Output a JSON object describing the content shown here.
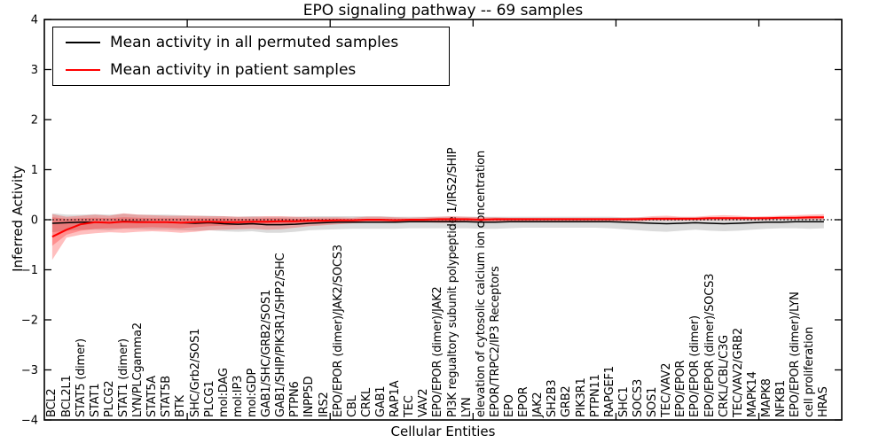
{
  "figure": {
    "title": "EPO signaling pathway -- 69 samples",
    "xlabel": "Cellular Entities",
    "ylabel": "Inferred Activity",
    "legend": [
      {
        "label": "Mean activity in all permuted samples",
        "color": "#000000"
      },
      {
        "label": "Mean activity in patient samples",
        "color": "#ff0000"
      }
    ]
  },
  "chart_data": {
    "type": "line",
    "title": "EPO signaling pathway -- 69 samples",
    "xlabel": "Cellular Entities",
    "ylabel": "Inferred Activity",
    "ylim": [
      -4,
      4
    ],
    "ytick_values": [
      4,
      3,
      2,
      1,
      0,
      -1,
      -2,
      -3,
      -4
    ],
    "ytick_labels": [
      "4",
      "3",
      "2",
      "1",
      "0",
      "−1",
      "−2",
      "−3",
      "−4"
    ],
    "xtick_values": [
      10,
      20,
      30,
      40,
      50
    ],
    "grid": false,
    "legend_position": "upper left",
    "zero_line": {
      "y": 0,
      "style": "dotted",
      "color": "#000000"
    },
    "categories": [
      "BCL2",
      "BCL2L1",
      "STAT5 (dimer)",
      "STAT1",
      "PLCG2",
      "STAT1 (dimer)",
      "LYN/PLCgamma2",
      "STAT5A",
      "STAT5B",
      "BTK",
      "SHC/Grb2/SOS1",
      "PLCG1",
      "mol:DAG",
      "mol:IP3",
      "mol:GDP",
      "GAB1/SHC/GRB2/SOS1",
      "GAB1/SHIP/PIK3R1/SHP2/SHC",
      "PTPN6",
      "INPP5D",
      "IRS2",
      "EPO/EPOR (dimer)/JAK2/SOCS3",
      "CBL",
      "CRKL",
      "GAB1",
      "RAP1A",
      "TEC",
      "VAV2",
      "EPO/EPOR (dimer)/JAK2",
      "PI3K regualtory subunit polypeptide 1/IRS2/SHIP",
      "LYN",
      "elevation of cytosolic calcium ion concentration",
      "EPOR/TRPC2/IP3 Receptors",
      "EPO",
      "EPOR",
      "JAK2",
      "SH2B3",
      "GRB2",
      "PIK3R1",
      "PTPN11",
      "RAPGEF1",
      "SHC1",
      "SOCS3",
      "SOS1",
      "TEC/VAV2",
      "EPO/EPOR",
      "EPO/EPOR (dimer)",
      "EPO/EPOR (dimer)/SOCS3",
      "CRKL/CBL/C3G",
      "TEC/VAV2/GRB2",
      "MAPK14",
      "MAPK8",
      "NFKB1",
      "EPO/EPOR (dimer)/LYN",
      "cell proliferation",
      "HRAS"
    ],
    "series": [
      {
        "name": "Mean activity in all permuted samples",
        "color": "#000000",
        "line_width": 1.5,
        "values": [
          -0.07,
          -0.06,
          -0.05,
          -0.05,
          -0.06,
          -0.03,
          -0.04,
          -0.05,
          -0.05,
          -0.06,
          -0.07,
          -0.06,
          -0.08,
          -0.09,
          -0.08,
          -0.1,
          -0.1,
          -0.09,
          -0.07,
          -0.06,
          -0.05,
          -0.05,
          -0.05,
          -0.05,
          -0.05,
          -0.04,
          -0.04,
          -0.04,
          -0.04,
          -0.04,
          -0.05,
          -0.05,
          -0.04,
          -0.04,
          -0.04,
          -0.04,
          -0.04,
          -0.04,
          -0.04,
          -0.04,
          -0.05,
          -0.06,
          -0.07,
          -0.08,
          -0.07,
          -0.06,
          -0.07,
          -0.08,
          -0.07,
          -0.06,
          -0.05,
          -0.05,
          -0.04,
          -0.04,
          -0.04
        ],
        "band": {
          "color": "rgba(0,0,0,0.14)",
          "hi": [
            0.13,
            0.1,
            0.1,
            0.11,
            0.1,
            0.12,
            0.1,
            0.1,
            0.1,
            0.09,
            0.08,
            0.08,
            0.07,
            0.06,
            0.07,
            0.06,
            0.06,
            0.06,
            0.07,
            0.07,
            0.07,
            0.07,
            0.07,
            0.07,
            0.06,
            0.06,
            0.06,
            0.06,
            0.06,
            0.06,
            0.06,
            0.06,
            0.06,
            0.06,
            0.06,
            0.06,
            0.06,
            0.06,
            0.06,
            0.06,
            0.05,
            0.05,
            0.05,
            0.05,
            0.05,
            0.05,
            0.05,
            0.05,
            0.05,
            0.05,
            0.05,
            0.05,
            0.05,
            0.05,
            0.05
          ],
          "lo": [
            -0.25,
            -0.22,
            -0.2,
            -0.2,
            -0.21,
            -0.18,
            -0.19,
            -0.2,
            -0.2,
            -0.21,
            -0.22,
            -0.21,
            -0.23,
            -0.24,
            -0.23,
            -0.26,
            -0.26,
            -0.24,
            -0.21,
            -0.2,
            -0.19,
            -0.18,
            -0.18,
            -0.18,
            -0.18,
            -0.17,
            -0.17,
            -0.17,
            -0.17,
            -0.17,
            -0.18,
            -0.18,
            -0.17,
            -0.16,
            -0.16,
            -0.16,
            -0.16,
            -0.16,
            -0.16,
            -0.17,
            -0.19,
            -0.21,
            -0.23,
            -0.24,
            -0.22,
            -0.2,
            -0.22,
            -0.23,
            -0.22,
            -0.2,
            -0.18,
            -0.17,
            -0.17,
            -0.18,
            -0.17
          ]
        }
      },
      {
        "name": "Mean activity in patient samples",
        "color": "#ff0000",
        "line_width": 2,
        "values": [
          -0.34,
          -0.2,
          -0.09,
          -0.05,
          -0.06,
          -0.04,
          -0.05,
          -0.05,
          -0.05,
          -0.06,
          -0.05,
          -0.04,
          -0.05,
          -0.05,
          -0.04,
          -0.04,
          -0.03,
          -0.03,
          -0.02,
          -0.02,
          -0.01,
          -0.01,
          0.0,
          0.0,
          -0.01,
          0.0,
          0.0,
          0.01,
          0.01,
          0.01,
          0.0,
          0.01,
          0.01,
          0.01,
          0.01,
          0.01,
          0.01,
          0.01,
          0.01,
          0.01,
          0.01,
          0.01,
          0.02,
          0.02,
          0.02,
          0.02,
          0.03,
          0.03,
          0.03,
          0.03,
          0.03,
          0.04,
          0.04,
          0.05,
          0.05
        ],
        "band": {
          "color": "rgba(255,0,0,0.25)",
          "hi": [
            0.11,
            0.06,
            0.08,
            0.1,
            0.08,
            0.13,
            0.1,
            0.09,
            0.08,
            0.08,
            0.08,
            0.07,
            0.07,
            0.06,
            0.06,
            0.07,
            0.07,
            0.06,
            0.05,
            0.05,
            0.05,
            0.04,
            0.06,
            0.06,
            0.05,
            0.04,
            0.05,
            0.06,
            0.07,
            0.06,
            0.05,
            0.05,
            0.04,
            0.04,
            0.04,
            0.04,
            0.04,
            0.04,
            0.04,
            0.04,
            0.04,
            0.05,
            0.07,
            0.08,
            0.06,
            0.06,
            0.08,
            0.09,
            0.08,
            0.06,
            0.07,
            0.08,
            0.09,
            0.1,
            0.11
          ],
          "lo": [
            -0.8,
            -0.36,
            -0.3,
            -0.27,
            -0.25,
            -0.26,
            -0.24,
            -0.23,
            -0.24,
            -0.26,
            -0.24,
            -0.21,
            -0.2,
            -0.19,
            -0.18,
            -0.2,
            -0.19,
            -0.16,
            -0.13,
            -0.11,
            -0.09,
            -0.07,
            -0.06,
            -0.06,
            -0.06,
            -0.05,
            -0.05,
            -0.06,
            -0.06,
            -0.05,
            -0.05,
            -0.05,
            -0.04,
            -0.04,
            -0.03,
            -0.03,
            -0.03,
            -0.03,
            -0.03,
            -0.03,
            -0.03,
            -0.03,
            -0.02,
            -0.02,
            -0.02,
            -0.02,
            -0.01,
            -0.01,
            -0.01,
            -0.01,
            -0.01,
            0.0,
            0.0,
            0.0,
            0.0
          ]
        },
        "band_inner": {
          "color": "rgba(255,0,0,0.25)",
          "hi": [
            0.05,
            0.02,
            0.03,
            0.04,
            0.03,
            0.05,
            0.04,
            0.03,
            0.03,
            0.03,
            0.03,
            0.03,
            0.03,
            0.02,
            0.02,
            0.03,
            0.03,
            0.02,
            0.02,
            0.02,
            0.02,
            0.01,
            0.02,
            0.02,
            0.02,
            0.01,
            0.02,
            0.02,
            0.03,
            0.02,
            0.02,
            0.02,
            0.01,
            0.01,
            0.01,
            0.01,
            0.01,
            0.01,
            0.01,
            0.01,
            0.01,
            0.02,
            0.03,
            0.04,
            0.03,
            0.03,
            0.04,
            0.05,
            0.04,
            0.03,
            0.03,
            0.04,
            0.05,
            0.06,
            0.07
          ],
          "lo": [
            -0.52,
            -0.3,
            -0.22,
            -0.18,
            -0.17,
            -0.17,
            -0.16,
            -0.15,
            -0.16,
            -0.17,
            -0.15,
            -0.13,
            -0.12,
            -0.11,
            -0.1,
            -0.11,
            -0.1,
            -0.09,
            -0.07,
            -0.06,
            -0.05,
            -0.04,
            -0.03,
            -0.03,
            -0.03,
            -0.03,
            -0.03,
            -0.03,
            -0.03,
            -0.02,
            -0.02,
            -0.02,
            -0.02,
            -0.02,
            -0.01,
            -0.01,
            -0.01,
            -0.01,
            -0.01,
            -0.01,
            -0.01,
            -0.01,
            0.0,
            0.0,
            0.0,
            0.0,
            0.01,
            0.01,
            0.01,
            0.01,
            0.01,
            0.02,
            0.02,
            0.02,
            0.03
          ]
        }
      }
    ]
  }
}
